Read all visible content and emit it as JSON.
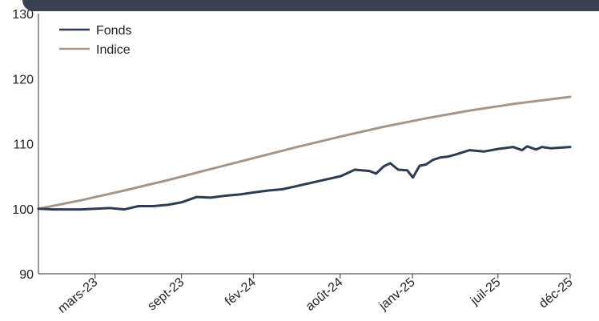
{
  "chart_data": {
    "type": "line",
    "title": "",
    "xlabel": "",
    "ylabel": "",
    "ylim": [
      90,
      130
    ],
    "yticks": [
      90,
      100,
      110,
      120,
      130
    ],
    "xlim": [
      "2022-12-01",
      "2025-12-31"
    ],
    "x_tick_labels": [
      "mars-23",
      "sept-23",
      "fév-24",
      "août-24",
      "janv-25",
      "juil-25",
      "déc-25"
    ],
    "x_tick_dates": [
      "2023-03-31",
      "2023-09-30",
      "2024-02-29",
      "2024-08-31",
      "2025-01-31",
      "2025-07-31",
      "2025-12-31"
    ],
    "grid": false,
    "legend_position": "top-left",
    "series": [
      {
        "name": "Fonds",
        "color": "#2e3b55",
        "x": [
          "2022-12-01",
          "2023-01-01",
          "2023-02-01",
          "2023-03-01",
          "2023-04-01",
          "2023-05-01",
          "2023-06-01",
          "2023-07-01",
          "2023-08-01",
          "2023-09-01",
          "2023-10-01",
          "2023-11-01",
          "2023-12-01",
          "2024-01-01",
          "2024-02-01",
          "2024-03-01",
          "2024-04-01",
          "2024-05-01",
          "2024-06-01",
          "2024-07-01",
          "2024-08-01",
          "2024-09-01",
          "2024-10-01",
          "2024-11-01",
          "2024-11-15",
          "2024-12-01",
          "2024-12-15",
          "2025-01-01",
          "2025-01-20",
          "2025-02-01",
          "2025-02-15",
          "2025-03-01",
          "2025-03-15",
          "2025-04-01",
          "2025-04-15",
          "2025-05-01",
          "2025-06-01",
          "2025-07-01",
          "2025-08-01",
          "2025-09-01",
          "2025-09-20",
          "2025-10-01",
          "2025-10-20",
          "2025-11-01",
          "2025-11-20",
          "2025-12-31"
        ],
        "y": [
          100.0,
          99.9,
          99.9,
          99.9,
          100.0,
          100.1,
          99.9,
          100.4,
          100.4,
          100.6,
          101.0,
          101.8,
          101.7,
          102.0,
          102.2,
          102.5,
          102.8,
          103.0,
          103.5,
          104.0,
          104.5,
          105.0,
          106.0,
          105.8,
          105.4,
          106.5,
          107.0,
          106.0,
          105.9,
          104.8,
          106.6,
          106.8,
          107.5,
          107.9,
          108.0,
          108.3,
          109.0,
          108.8,
          109.2,
          109.5,
          109.0,
          109.6,
          109.1,
          109.5,
          109.3,
          109.5
        ]
      },
      {
        "name": "Indice",
        "color": "#a6968a",
        "x": [
          "2022-12-01",
          "2023-03-01",
          "2023-06-01",
          "2023-09-01",
          "2023-12-01",
          "2024-03-01",
          "2024-06-01",
          "2024-09-01",
          "2024-12-01",
          "2025-03-01",
          "2025-06-01",
          "2025-09-01",
          "2025-12-31"
        ],
        "y": [
          100.0,
          101.3,
          102.8,
          104.4,
          106.1,
          107.8,
          109.5,
          111.1,
          112.6,
          113.9,
          115.1,
          116.1,
          117.2
        ]
      }
    ]
  }
}
